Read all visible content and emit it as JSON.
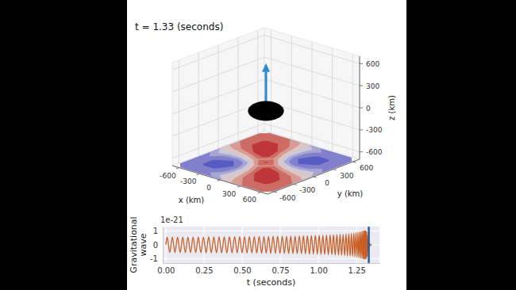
{
  "chart_data": [
    {
      "type": "contour3d",
      "title": "t = 1.33 (seconds)",
      "x_label": "x (km)",
      "y_label": "y (km)",
      "z_label": "z (km)",
      "xlim": [
        -700,
        700
      ],
      "ylim": [
        -700,
        700
      ],
      "zlim": [
        -700,
        700
      ],
      "xticks": [
        -600,
        -300,
        0,
        300,
        600
      ],
      "yticks": [
        -600,
        -300,
        0,
        300,
        600
      ],
      "zticks": [
        -600,
        -300,
        0,
        300,
        600
      ],
      "grid": true,
      "cell_x": [
        -600,
        -450,
        -300,
        -150,
        0,
        150,
        300,
        450,
        600
      ],
      "cell_y": [
        -600,
        -450,
        -300,
        -150,
        0,
        150,
        300,
        450,
        600
      ],
      "cells": [
        [
          -0.6,
          -0.67,
          -0.6,
          -0.37,
          0,
          0.37,
          0.6,
          0.67,
          0.6
        ],
        [
          -0.67,
          -0.78,
          -0.81,
          -0.58,
          0,
          0.58,
          0.81,
          0.78,
          0.67
        ],
        [
          -0.6,
          -0.81,
          -0.98,
          -0.69,
          0.1,
          0.79,
          0.98,
          0.81,
          0.6
        ],
        [
          -0.37,
          -0.58,
          -0.69,
          -0.41,
          0.4,
          0.91,
          0.79,
          0.58,
          0.37
        ],
        [
          0,
          0,
          0.1,
          0.4,
          0.8,
          0.4,
          0.1,
          0,
          0
        ],
        [
          0.37,
          0.58,
          0.79,
          0.91,
          0.4,
          -0.41,
          -0.69,
          -0.58,
          -0.37
        ],
        [
          0.6,
          0.81,
          0.98,
          0.79,
          0.1,
          -0.69,
          -0.98,
          -0.81,
          -0.6
        ],
        [
          0.67,
          0.78,
          0.81,
          0.58,
          0,
          -0.58,
          -0.81,
          -0.78,
          -0.67
        ],
        [
          0.6,
          0.67,
          0.6,
          0.37,
          0,
          -0.37,
          -0.6,
          -0.67,
          -0.6
        ]
      ],
      "levels": [
        -1,
        -0.75,
        -0.5,
        -0.25,
        0,
        0.25,
        0.5,
        0.75,
        1
      ],
      "color_range": [
        -1,
        1
      ],
      "disk": {
        "center": [
          0,
          0,
          0
        ],
        "radius": 190,
        "color": "#000000"
      },
      "arrow": {
        "start": [
          0,
          0,
          0
        ],
        "end": [
          0,
          0,
          650
        ],
        "color": "#2b8ad6"
      }
    },
    {
      "type": "line",
      "x_label": "t (seconds)",
      "y_label": "Gravitational wave",
      "annotations": [
        {
          "text": "1e-21"
        }
      ],
      "xlim": [
        -0.02,
        1.4
      ],
      "ylim": [
        -1.3,
        1.3
      ],
      "xticks": [
        {
          "value": 0,
          "label": "0.00"
        },
        {
          "value": 0.25,
          "label": "0.25"
        },
        {
          "value": 0.5,
          "label": "0.50"
        },
        {
          "value": 0.75,
          "label": "0.75"
        },
        {
          "value": 1,
          "label": "1.00"
        },
        {
          "value": 1.25,
          "label": "1.25"
        }
      ],
      "yticks": [
        -1,
        0,
        1
      ],
      "grid": true,
      "color": "#c95f24",
      "vlines": [
        {
          "value": 1.33,
          "color": "#2c5aa0"
        }
      ],
      "x": [
        0,
        0.009,
        0.026,
        0.043,
        0.06,
        0.077,
        0.094,
        0.111,
        0.128,
        0.145,
        0.162,
        0.179,
        0.196,
        0.213,
        0.23,
        0.247,
        0.264,
        0.281,
        0.298,
        0.315,
        0.332,
        0.349,
        0.366,
        0.383,
        0.4,
        0.417,
        0.434,
        0.451,
        0.468,
        0.484,
        0.5,
        0.516,
        0.532,
        0.548,
        0.564,
        0.58,
        0.596,
        0.612,
        0.628,
        0.643,
        0.658,
        0.673,
        0.688,
        0.703,
        0.718,
        0.733,
        0.748,
        0.763,
        0.777,
        0.791,
        0.805,
        0.819,
        0.833,
        0.847,
        0.861,
        0.875,
        0.889,
        0.902,
        0.915,
        0.928,
        0.941,
        0.954,
        0.967,
        0.98,
        0.993,
        1.005,
        1.017,
        1.029,
        1.041,
        1.053,
        1.065,
        1.077,
        1.088,
        1.099,
        1.11,
        1.121,
        1.132,
        1.142,
        1.152,
        1.162,
        1.172,
        1.181,
        1.19,
        1.199,
        1.208,
        1.216,
        1.224,
        1.232,
        1.239,
        1.246,
        1.253,
        1.259,
        1.265,
        1.271,
        1.276,
        1.281,
        1.286,
        1.29,
        1.294,
        1.298,
        1.301,
        1.304,
        1.307,
        1.31,
        1.313,
        1.316,
        1.319,
        1.322,
        1.325,
        1.328,
        1.331,
        1.334,
        1.337,
        1.34,
        1.345,
        1.35
      ],
      "values": [
        0,
        0.55,
        -0.55,
        0.55,
        -0.55,
        0.55,
        -0.55,
        0.56,
        -0.56,
        0.56,
        -0.56,
        0.56,
        -0.56,
        0.56,
        -0.56,
        0.56,
        -0.57,
        0.57,
        -0.57,
        0.57,
        -0.57,
        0.57,
        -0.57,
        0.57,
        -0.58,
        0.58,
        -0.58,
        0.58,
        -0.58,
        0.58,
        -0.58,
        0.59,
        -0.59,
        0.59,
        -0.59,
        0.59,
        -0.59,
        0.6,
        -0.6,
        0.6,
        -0.6,
        0.6,
        -0.61,
        0.61,
        -0.61,
        0.61,
        -0.62,
        0.62,
        -0.62,
        0.62,
        -0.63,
        0.63,
        -0.63,
        0.63,
        -0.64,
        0.64,
        -0.64,
        0.65,
        -0.65,
        0.65,
        -0.66,
        0.66,
        -0.66,
        0.67,
        -0.67,
        0.68,
        -0.68,
        0.69,
        -0.69,
        0.7,
        -0.7,
        0.71,
        -0.71,
        0.72,
        -0.73,
        0.73,
        -0.74,
        0.75,
        -0.75,
        0.76,
        -0.77,
        0.78,
        -0.79,
        0.8,
        -0.81,
        0.82,
        -0.83,
        0.84,
        -0.85,
        0.87,
        -0.88,
        0.89,
        -0.91,
        0.92,
        -0.94,
        0.95,
        -0.97,
        0.98,
        -1.0,
        1.01,
        -1.02,
        1.03,
        -1.03,
        1.02,
        -1.0,
        0.95,
        -0.85,
        0.7,
        -0.55,
        0.4,
        -0.28,
        0.18,
        -0.1,
        0.05,
        0,
        0
      ]
    }
  ]
}
